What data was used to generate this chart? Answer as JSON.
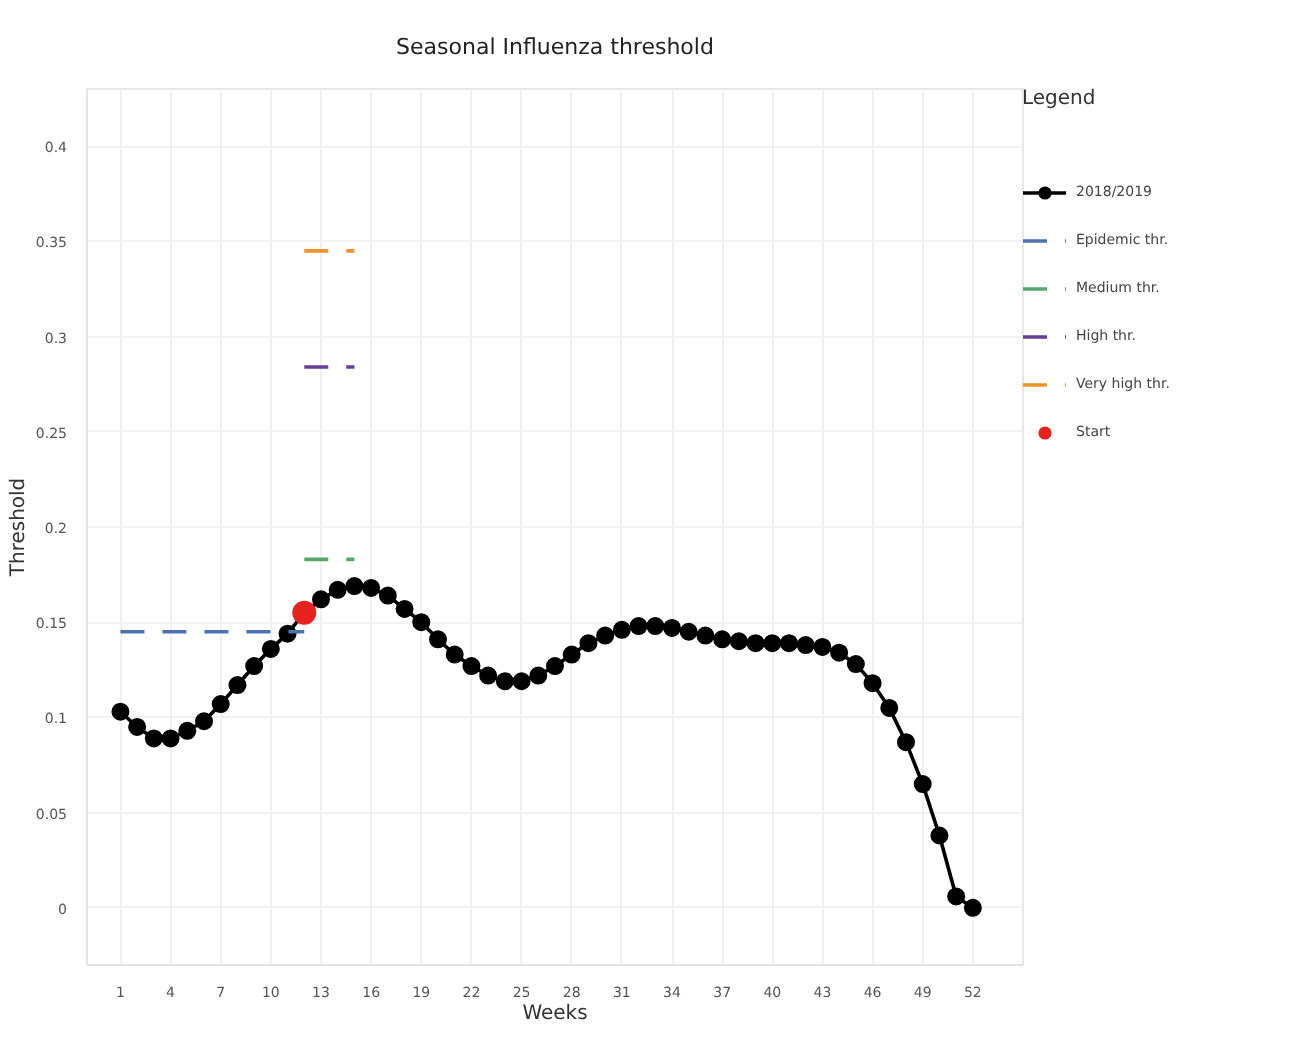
{
  "chart_data": {
    "type": "line",
    "title": "Seasonal Influenza threshold",
    "xlabel": "Weeks",
    "ylabel": "Threshold",
    "legend_title": "Legend",
    "x": [
      1,
      2,
      3,
      4,
      5,
      6,
      7,
      8,
      9,
      10,
      11,
      12,
      13,
      14,
      15,
      16,
      17,
      18,
      19,
      20,
      21,
      22,
      23,
      24,
      25,
      26,
      27,
      28,
      29,
      30,
      31,
      32,
      33,
      34,
      35,
      36,
      37,
      38,
      39,
      40,
      41,
      42,
      43,
      44,
      45,
      46,
      47,
      48,
      49,
      50,
      51,
      52
    ],
    "series": [
      {
        "name": "2018/2019",
        "color": "#000000",
        "marker": "circle",
        "line_style": "solid",
        "values": [
          0.103,
          0.095,
          0.089,
          0.089,
          0.093,
          0.098,
          0.107,
          0.117,
          0.127,
          0.136,
          0.144,
          0.155,
          0.162,
          0.167,
          0.169,
          0.168,
          0.164,
          0.157,
          0.15,
          0.141,
          0.133,
          0.127,
          0.122,
          0.119,
          0.119,
          0.122,
          0.127,
          0.133,
          0.139,
          0.143,
          0.146,
          0.148,
          0.148,
          0.147,
          0.145,
          0.143,
          0.141,
          0.14,
          0.139,
          0.139,
          0.139,
          0.138,
          0.137,
          0.134,
          0.128,
          0.118,
          0.105,
          0.087,
          0.065,
          0.038,
          0.006,
          0
        ]
      },
      {
        "name": "Epidemic thr.",
        "color": "#4c72b0",
        "marker": "none",
        "line_style": "dashed",
        "x": [
          1,
          12
        ],
        "values": [
          0.145,
          0.145
        ]
      },
      {
        "name": "Medium thr.",
        "color": "#55a868",
        "marker": "none",
        "line_style": "dashed",
        "x": [
          12,
          15
        ],
        "values": [
          0.183,
          0.183
        ]
      },
      {
        "name": "High thr.",
        "color": "#6a3d9a",
        "marker": "none",
        "line_style": "dashed",
        "x": [
          12,
          15
        ],
        "values": [
          0.284,
          0.284
        ]
      },
      {
        "name": "Very high thr.",
        "color": "#f0932b",
        "marker": "none",
        "line_style": "dashed",
        "x": [
          12,
          15
        ],
        "values": [
          0.345,
          0.345
        ]
      },
      {
        "name": "Start",
        "type": "scatter",
        "color": "#e8231f",
        "marker": "circle",
        "x": [
          12
        ],
        "values": [
          0.155
        ]
      }
    ],
    "xlim": [
      -1,
      55
    ],
    "xticks": [
      1,
      4,
      7,
      10,
      13,
      16,
      19,
      22,
      25,
      28,
      31,
      34,
      37,
      40,
      43,
      46,
      49,
      52
    ],
    "ylim": [
      -0.03,
      0.43
    ],
    "yticks": [
      0,
      0.05,
      0.1,
      0.15,
      0.2,
      0.25,
      0.3,
      0.35,
      0.4
    ],
    "grid": true,
    "legend": "right"
  }
}
